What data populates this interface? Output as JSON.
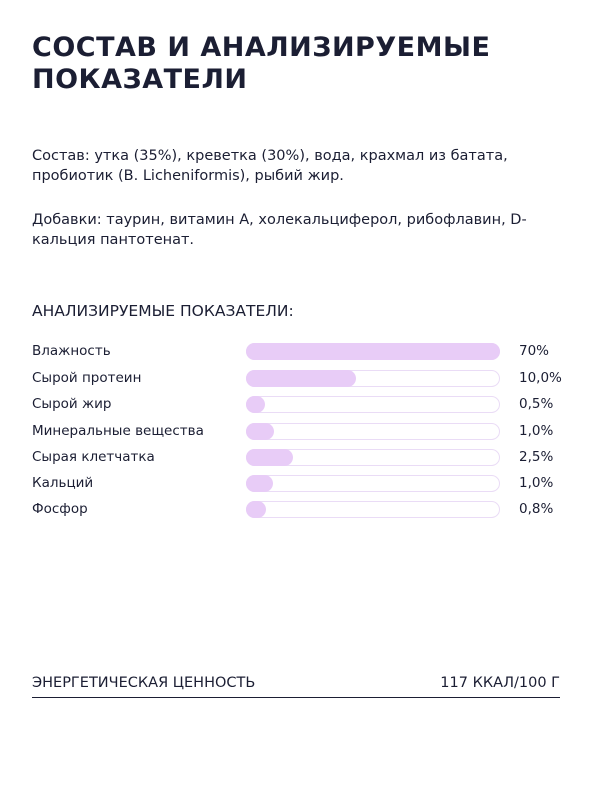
{
  "title": "СОСТАВ И АНАЛИЗИРУЕМЫЕ ПОКАЗАТЕЛИ",
  "composition": "Состав: утка (35%), креветка (30%), вода, крахмал из батата, пробиотик (B. Licheniformis), рыбий жир.",
  "additives": "Добавки: таурин, витамин А, холекальциферол, рибофлавин, D-кальция пантотенат.",
  "analysis": {
    "heading": "АНАЛИЗИРУЕМЫЕ ПОКАЗАТЕЛИ:",
    "rows": [
      {
        "name": "Влажность",
        "value": "70%"
      },
      {
        "name": "Сырой протеин",
        "value": "10,0%"
      },
      {
        "name": "Сырой жир",
        "value": "0,5%"
      },
      {
        "name": "Минеральные вещества",
        "value": "1,0%"
      },
      {
        "name": "Сырая клетчатка",
        "value": "2,5%"
      },
      {
        "name": "Кальций",
        "value": "1,0%"
      },
      {
        "name": "Фосфор",
        "value": "0,8%"
      }
    ]
  },
  "energy": {
    "label": "ЭНЕРГЕТИЧЕСКАЯ ЦЕННОСТЬ",
    "value": "117 ККАЛ/100 Г"
  }
}
